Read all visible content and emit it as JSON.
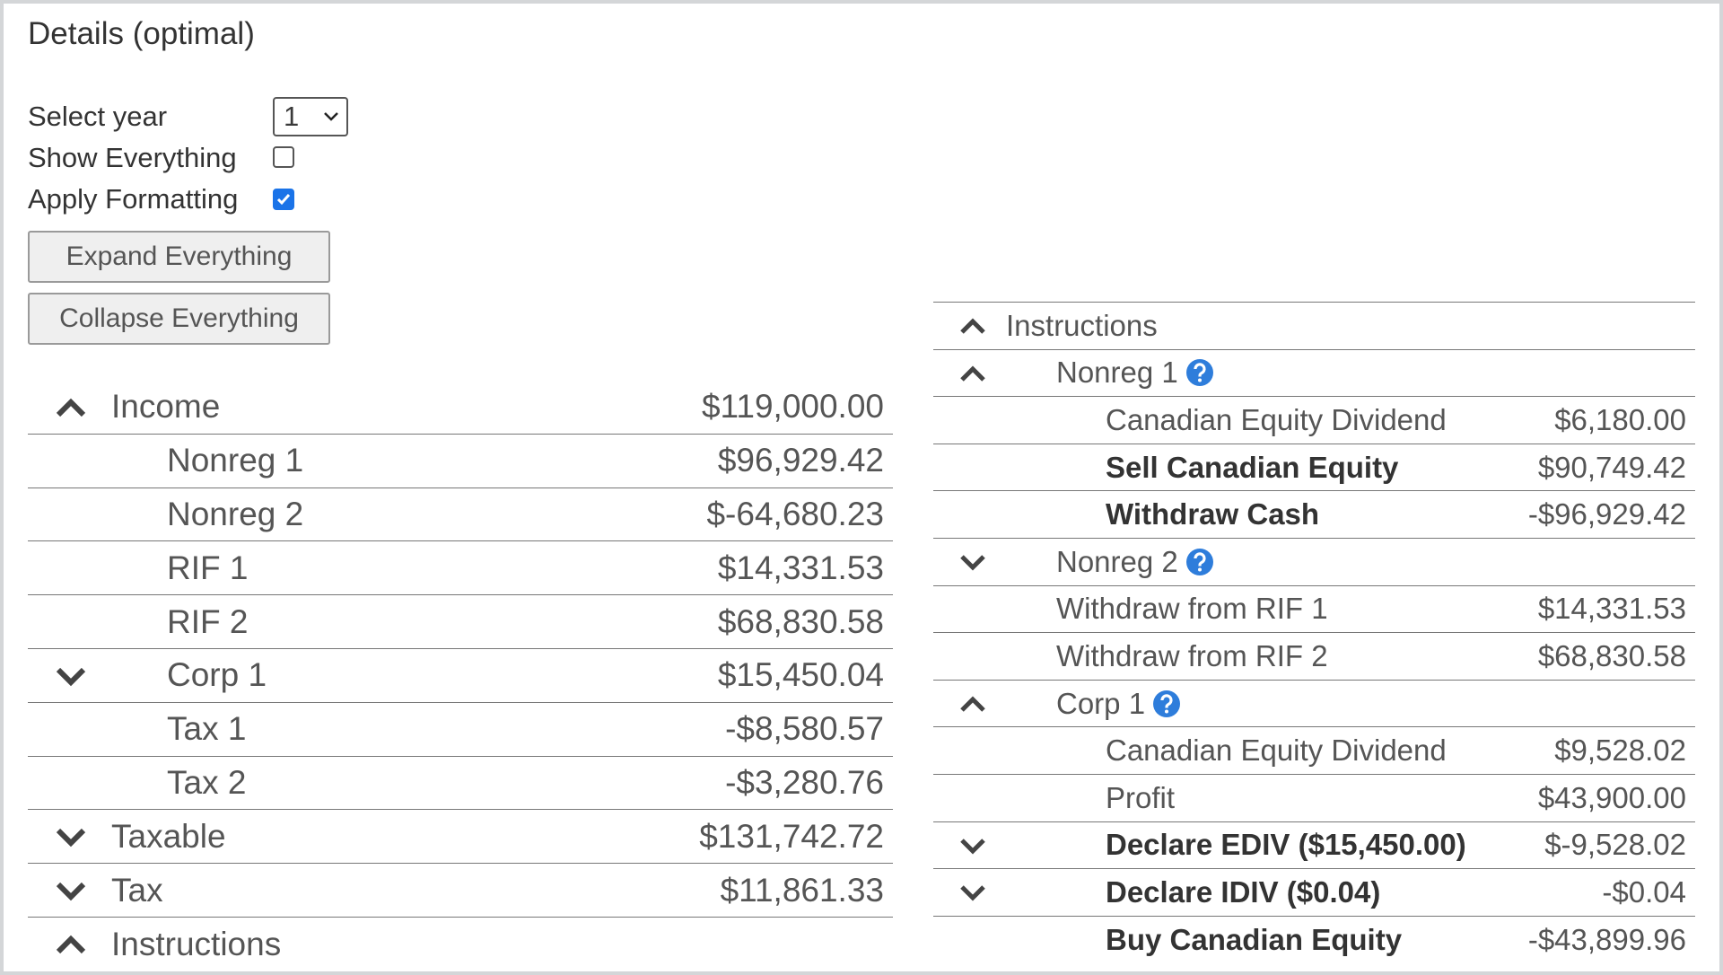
{
  "title": "Details (optimal)",
  "controls": {
    "select_year": {
      "label": "Select year",
      "value": "1"
    },
    "show_everything": {
      "label": "Show Everything",
      "checked": false
    },
    "apply_formatting": {
      "label": "Apply Formatting",
      "checked": true
    },
    "buttons": [
      "Expand Everything",
      "Collapse Everything"
    ]
  },
  "summary_table": {
    "rows": [
      {
        "label": "Income",
        "value": "$119,000.00"
      },
      {
        "label": "Nonreg 1",
        "value": "$96,929.42"
      },
      {
        "label": "Nonreg 2",
        "value": "$-64,680.23"
      },
      {
        "label": "RIF 1",
        "value": "$14,331.53"
      },
      {
        "label": "RIF 2",
        "value": "$68,830.58"
      },
      {
        "label": "Corp 1",
        "value": "$15,450.04"
      },
      {
        "label": "Tax 1",
        "value": "-$8,580.57"
      },
      {
        "label": "Tax 2",
        "value": "-$3,280.76"
      },
      {
        "label": "Taxable",
        "value": "$131,742.72"
      },
      {
        "label": "Tax",
        "value": "$11,861.33"
      },
      {
        "label": "Instructions"
      }
    ]
  },
  "instructions_table": {
    "header": "Instructions",
    "rows": [
      {
        "label": "Nonreg 1"
      },
      {
        "label": "Canadian Equity Dividend",
        "value": "$6,180.00"
      },
      {
        "label": "Sell Canadian Equity",
        "value": "$90,749.42"
      },
      {
        "label": "Withdraw Cash",
        "value": "-$96,929.42"
      },
      {
        "label": "Nonreg 2"
      },
      {
        "label": "Withdraw from RIF 1",
        "value": "$14,331.53"
      },
      {
        "label": "Withdraw from RIF 2",
        "value": "$68,830.58"
      },
      {
        "label": "Corp 1"
      },
      {
        "label": "Canadian Equity Dividend",
        "value": "$9,528.02"
      },
      {
        "label": "Profit",
        "value": "$43,900.00"
      },
      {
        "label": "Declare EDIV ($15,450.00)",
        "value": "$-9,528.02"
      },
      {
        "label": "Declare IDIV ($0.04)",
        "value": "-$0.04"
      },
      {
        "label": "Buy Canadian Equity",
        "value": "-$43,899.96"
      }
    ]
  }
}
